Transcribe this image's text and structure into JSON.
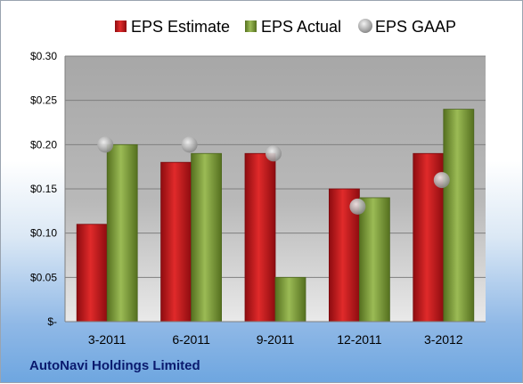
{
  "company": "AutoNavi Holdings Limited",
  "chart_data": {
    "type": "bar",
    "categories": [
      "3-2011",
      "6-2011",
      "9-2011",
      "12-2011",
      "3-2012"
    ],
    "series": [
      {
        "name": "EPS Estimate",
        "kind": "bar",
        "color": "#c8161d",
        "values": [
          0.11,
          0.18,
          0.19,
          0.15,
          0.19
        ]
      },
      {
        "name": "EPS Actual",
        "kind": "bar",
        "color": "#7e9b3a",
        "values": [
          0.2,
          0.19,
          0.05,
          0.14,
          0.24
        ]
      },
      {
        "name": "EPS GAAP",
        "kind": "marker",
        "color": "#a9a9a9",
        "values": [
          0.2,
          0.2,
          0.19,
          0.13,
          0.16
        ]
      }
    ],
    "ylim": [
      0,
      0.3
    ],
    "yticks": [
      0,
      0.05,
      0.1,
      0.15,
      0.2,
      0.25,
      0.3
    ],
    "ytick_labels": [
      "$-",
      "$0.05",
      "$0.10",
      "$0.15",
      "$0.20",
      "$0.25",
      "$0.30"
    ],
    "grid": true,
    "legend": "top"
  }
}
